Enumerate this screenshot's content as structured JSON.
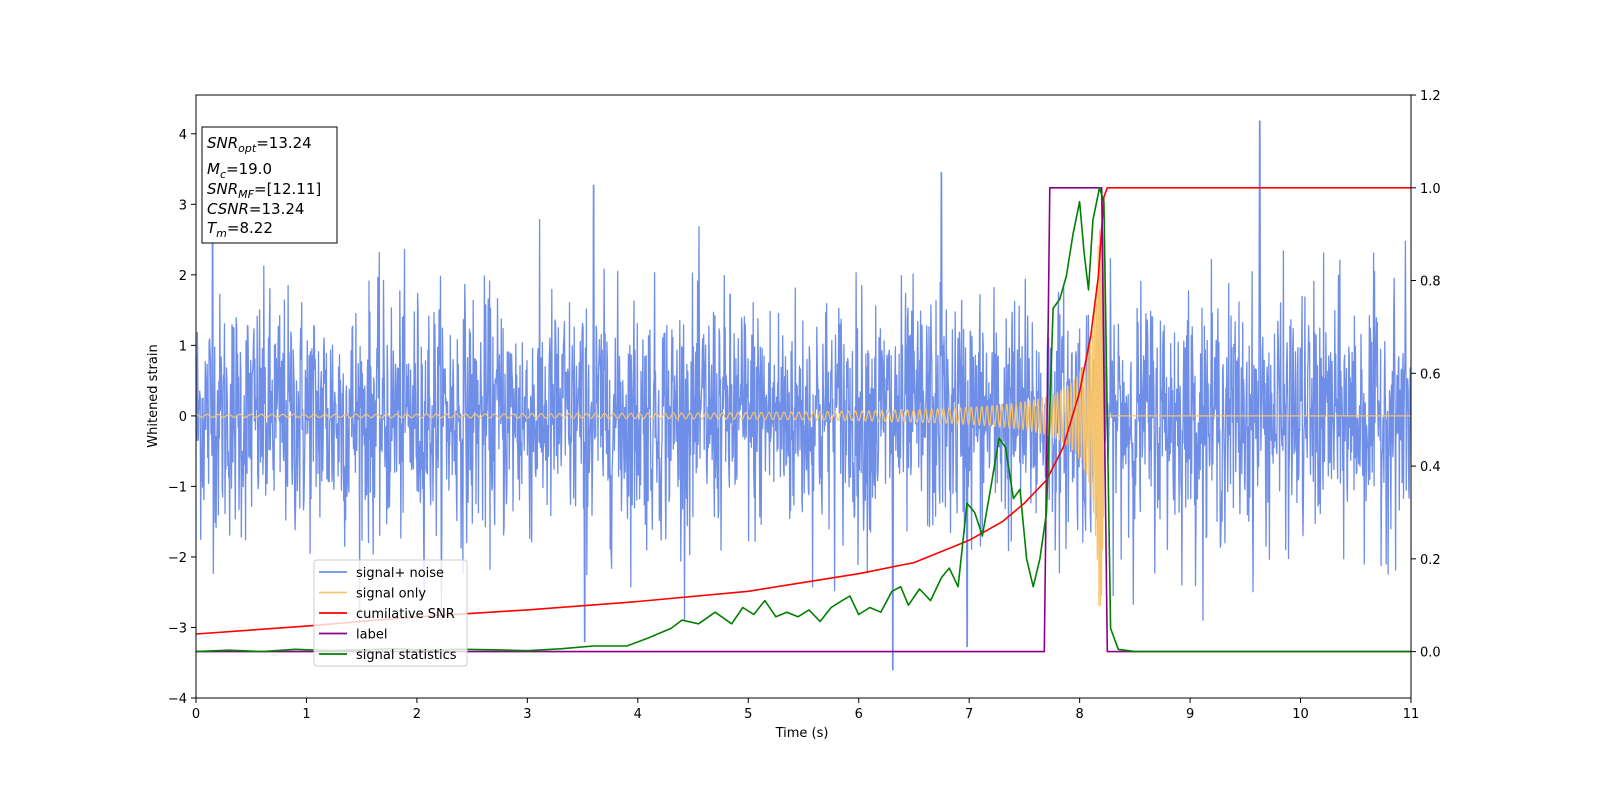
{
  "chart_data": {
    "type": "line",
    "xlabel": "Time (s)",
    "ylabel": "Whitened strain",
    "xlim": [
      0,
      11
    ],
    "ylim": [
      -4,
      4.55
    ],
    "y2lim": [
      -0.1,
      1.2
    ],
    "x_ticks": [
      0,
      1,
      2,
      3,
      4,
      5,
      6,
      7,
      8,
      9,
      10,
      11
    ],
    "x_tick_labels": [
      "0",
      "1",
      "2",
      "3",
      "4",
      "5",
      "6",
      "7",
      "8",
      "9",
      "10",
      "11"
    ],
    "y_ticks": [
      -4,
      -3,
      -2,
      -1,
      0,
      1,
      2,
      3,
      4
    ],
    "y_tick_labels": [
      "−4",
      "−3",
      "−2",
      "−1",
      "0",
      "1",
      "2",
      "3",
      "4"
    ],
    "y2_ticks": [
      0,
      0.2,
      0.4,
      0.6,
      0.8,
      1.0,
      1.2
    ],
    "y2_tick_labels": [
      "0.0",
      "0.2",
      "0.4",
      "0.6",
      "0.8",
      "1.0",
      "1.2"
    ],
    "grid": false,
    "legend_placement": "lower-left",
    "info_box": [
      {
        "main": "SNR",
        "sub": "opt",
        "rest": "=13.24"
      },
      {
        "main": "M",
        "sub": "c",
        "rest": "=19.0"
      },
      {
        "main": "SNR",
        "sub": "MF",
        "rest": "=[12.11]"
      },
      {
        "main": "CSNR",
        "sub": "",
        "rest": "=13.24"
      },
      {
        "main": "T",
        "sub": "m",
        "rest": "=8.22"
      }
    ],
    "series": [
      {
        "name": "signal+ noise",
        "axis": "left",
        "color": "#6f8ee8",
        "kind": "noise",
        "sigma": 0.85,
        "spikes": [
          [
            0.15,
            2.9
          ],
          [
            3.6,
            3.27
          ],
          [
            6.75,
            3.45
          ],
          [
            9.63,
            4.18
          ],
          [
            6.31,
            -3.6
          ],
          [
            6.98,
            -3.27
          ],
          [
            3.52,
            -3.2
          ]
        ]
      },
      {
        "name": "signal only",
        "axis": "left",
        "color": "#f5c46f",
        "kind": "chirp",
        "merger_time": 8.22,
        "amplitude_start": 0.02,
        "amplitude_peak": 2.7
      },
      {
        "name": "cumilative SNR",
        "axis": "right",
        "color": "#ff0000",
        "x": [
          0,
          1,
          2,
          3,
          4,
          5,
          6,
          6.5,
          7,
          7.3,
          7.5,
          7.7,
          7.85,
          8.0,
          8.1,
          8.17,
          8.22,
          8.25,
          9,
          10,
          11
        ],
        "y": [
          0.038,
          0.055,
          0.075,
          0.09,
          0.108,
          0.13,
          0.168,
          0.192,
          0.24,
          0.28,
          0.32,
          0.37,
          0.44,
          0.56,
          0.68,
          0.81,
          0.98,
          1.0,
          1.0,
          1.0,
          1.0
        ]
      },
      {
        "name": "label",
        "axis": "right",
        "color": "#8b008b",
        "x": [
          0,
          7.68,
          7.73,
          8.2,
          8.25,
          11
        ],
        "y": [
          0,
          0,
          1,
          1,
          0,
          0
        ]
      },
      {
        "name": "signal statistics",
        "axis": "right",
        "color": "#008000",
        "x": [
          0,
          0.3,
          0.6,
          0.9,
          1.2,
          1.5,
          1.8,
          2.1,
          2.4,
          2.7,
          3.0,
          3.3,
          3.6,
          3.9,
          4.1,
          4.3,
          4.4,
          4.55,
          4.7,
          4.85,
          4.95,
          5.05,
          5.15,
          5.25,
          5.35,
          5.45,
          5.55,
          5.65,
          5.75,
          5.85,
          5.92,
          6.0,
          6.1,
          6.2,
          6.3,
          6.38,
          6.45,
          6.55,
          6.65,
          6.75,
          6.82,
          6.9,
          6.98,
          7.05,
          7.12,
          7.2,
          7.27,
          7.33,
          7.4,
          7.46,
          7.52,
          7.58,
          7.64,
          7.7,
          7.76,
          7.82,
          7.88,
          7.94,
          8.0,
          8.04,
          8.08,
          8.12,
          8.18,
          8.22,
          8.28,
          8.35,
          8.5,
          9,
          10,
          11
        ],
        "y": [
          0,
          0.003,
          0.0,
          0.005,
          0.002,
          0.004,
          0.006,
          0.003,
          0.005,
          0.004,
          0.002,
          0.006,
          0.012,
          0.012,
          0.03,
          0.05,
          0.068,
          0.06,
          0.085,
          0.06,
          0.095,
          0.08,
          0.11,
          0.075,
          0.085,
          0.075,
          0.09,
          0.065,
          0.095,
          0.11,
          0.12,
          0.08,
          0.095,
          0.085,
          0.13,
          0.14,
          0.1,
          0.135,
          0.11,
          0.16,
          0.18,
          0.14,
          0.32,
          0.3,
          0.25,
          0.36,
          0.46,
          0.44,
          0.33,
          0.35,
          0.2,
          0.14,
          0.2,
          0.3,
          0.74,
          0.76,
          0.81,
          0.9,
          0.97,
          0.86,
          0.78,
          0.93,
          1.0,
          0.97,
          0.05,
          0.005,
          0.0,
          0.0,
          0.0,
          0.0
        ]
      }
    ]
  }
}
